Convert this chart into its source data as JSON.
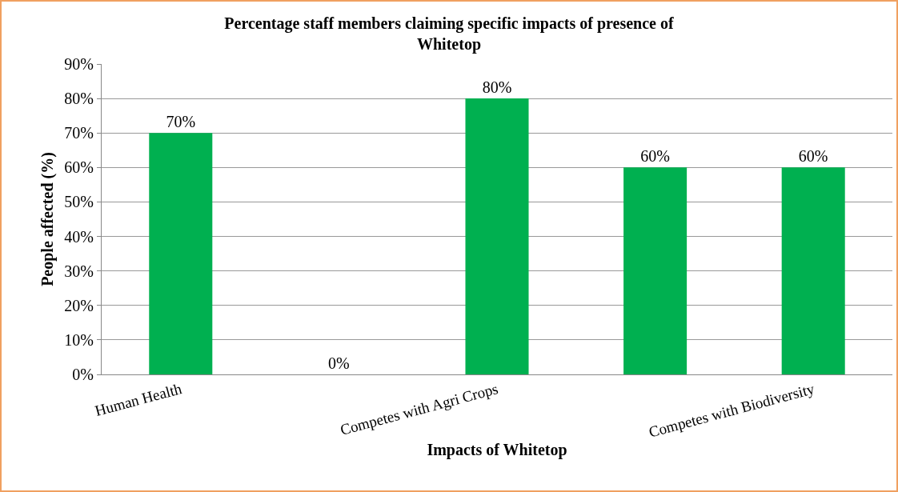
{
  "chart_data": {
    "type": "bar",
    "title": "Percentage staff members claiming specific impacts of presence of Whitetop",
    "xlabel": "Impacts of Whitetop",
    "ylabel": "People affected (%)",
    "categories": [
      "Human Health",
      null,
      "Competes with Agri Crops",
      null,
      "Competes with Biodiversity"
    ],
    "values": [
      70,
      0,
      80,
      60,
      60
    ],
    "color": "#00b050",
    "value_labels": [
      "70%",
      "0%",
      "80%",
      "60%",
      "60%"
    ],
    "ylim": [
      0,
      90
    ],
    "yticks": [
      {
        "value": 0,
        "label": "0%"
      },
      {
        "value": 10,
        "label": "10%"
      },
      {
        "value": 20,
        "label": "20%"
      },
      {
        "value": 30,
        "label": "30%"
      },
      {
        "value": 40,
        "label": "40%"
      },
      {
        "value": 50,
        "label": "50%"
      },
      {
        "value": 60,
        "label": "60%"
      },
      {
        "value": 70,
        "label": "70%"
      },
      {
        "value": 80,
        "label": "80%"
      },
      {
        "value": 90,
        "label": "90%"
      }
    ],
    "grid": "y",
    "legend": false
  }
}
